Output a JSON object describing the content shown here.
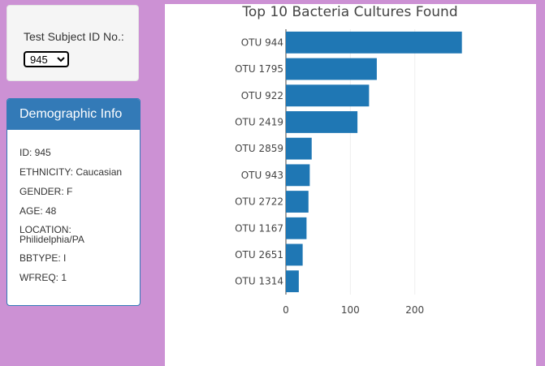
{
  "selector": {
    "label": "Test Subject ID No.:",
    "selected": "945"
  },
  "demographics": {
    "title": "Demographic Info",
    "lines": [
      "ID: 945",
      "ETHNICITY: Caucasian",
      "GENDER: F",
      "AGE: 48",
      "LOCATION: Philidelphia/PA",
      "BBTYPE: I",
      "WFREQ: 1"
    ]
  },
  "colors": {
    "page_background": "#cc91d4",
    "panel_header": "#337ab7",
    "bar": "#1f77b4"
  },
  "chart_data": {
    "type": "bar",
    "orientation": "horizontal",
    "title": "Top 10 Bacteria Cultures Found",
    "categories": [
      "OTU 944",
      "OTU 1795",
      "OTU 922",
      "OTU 2419",
      "OTU 2859",
      "OTU 943",
      "OTU 2722",
      "OTU 1167",
      "OTU 2651",
      "OTU 1314"
    ],
    "values": [
      273,
      141,
      129,
      111,
      40,
      37,
      35,
      32,
      26,
      20
    ],
    "xticks": [
      "0",
      "100",
      "200"
    ],
    "xlim": [
      0,
      286
    ],
    "grid": true
  }
}
